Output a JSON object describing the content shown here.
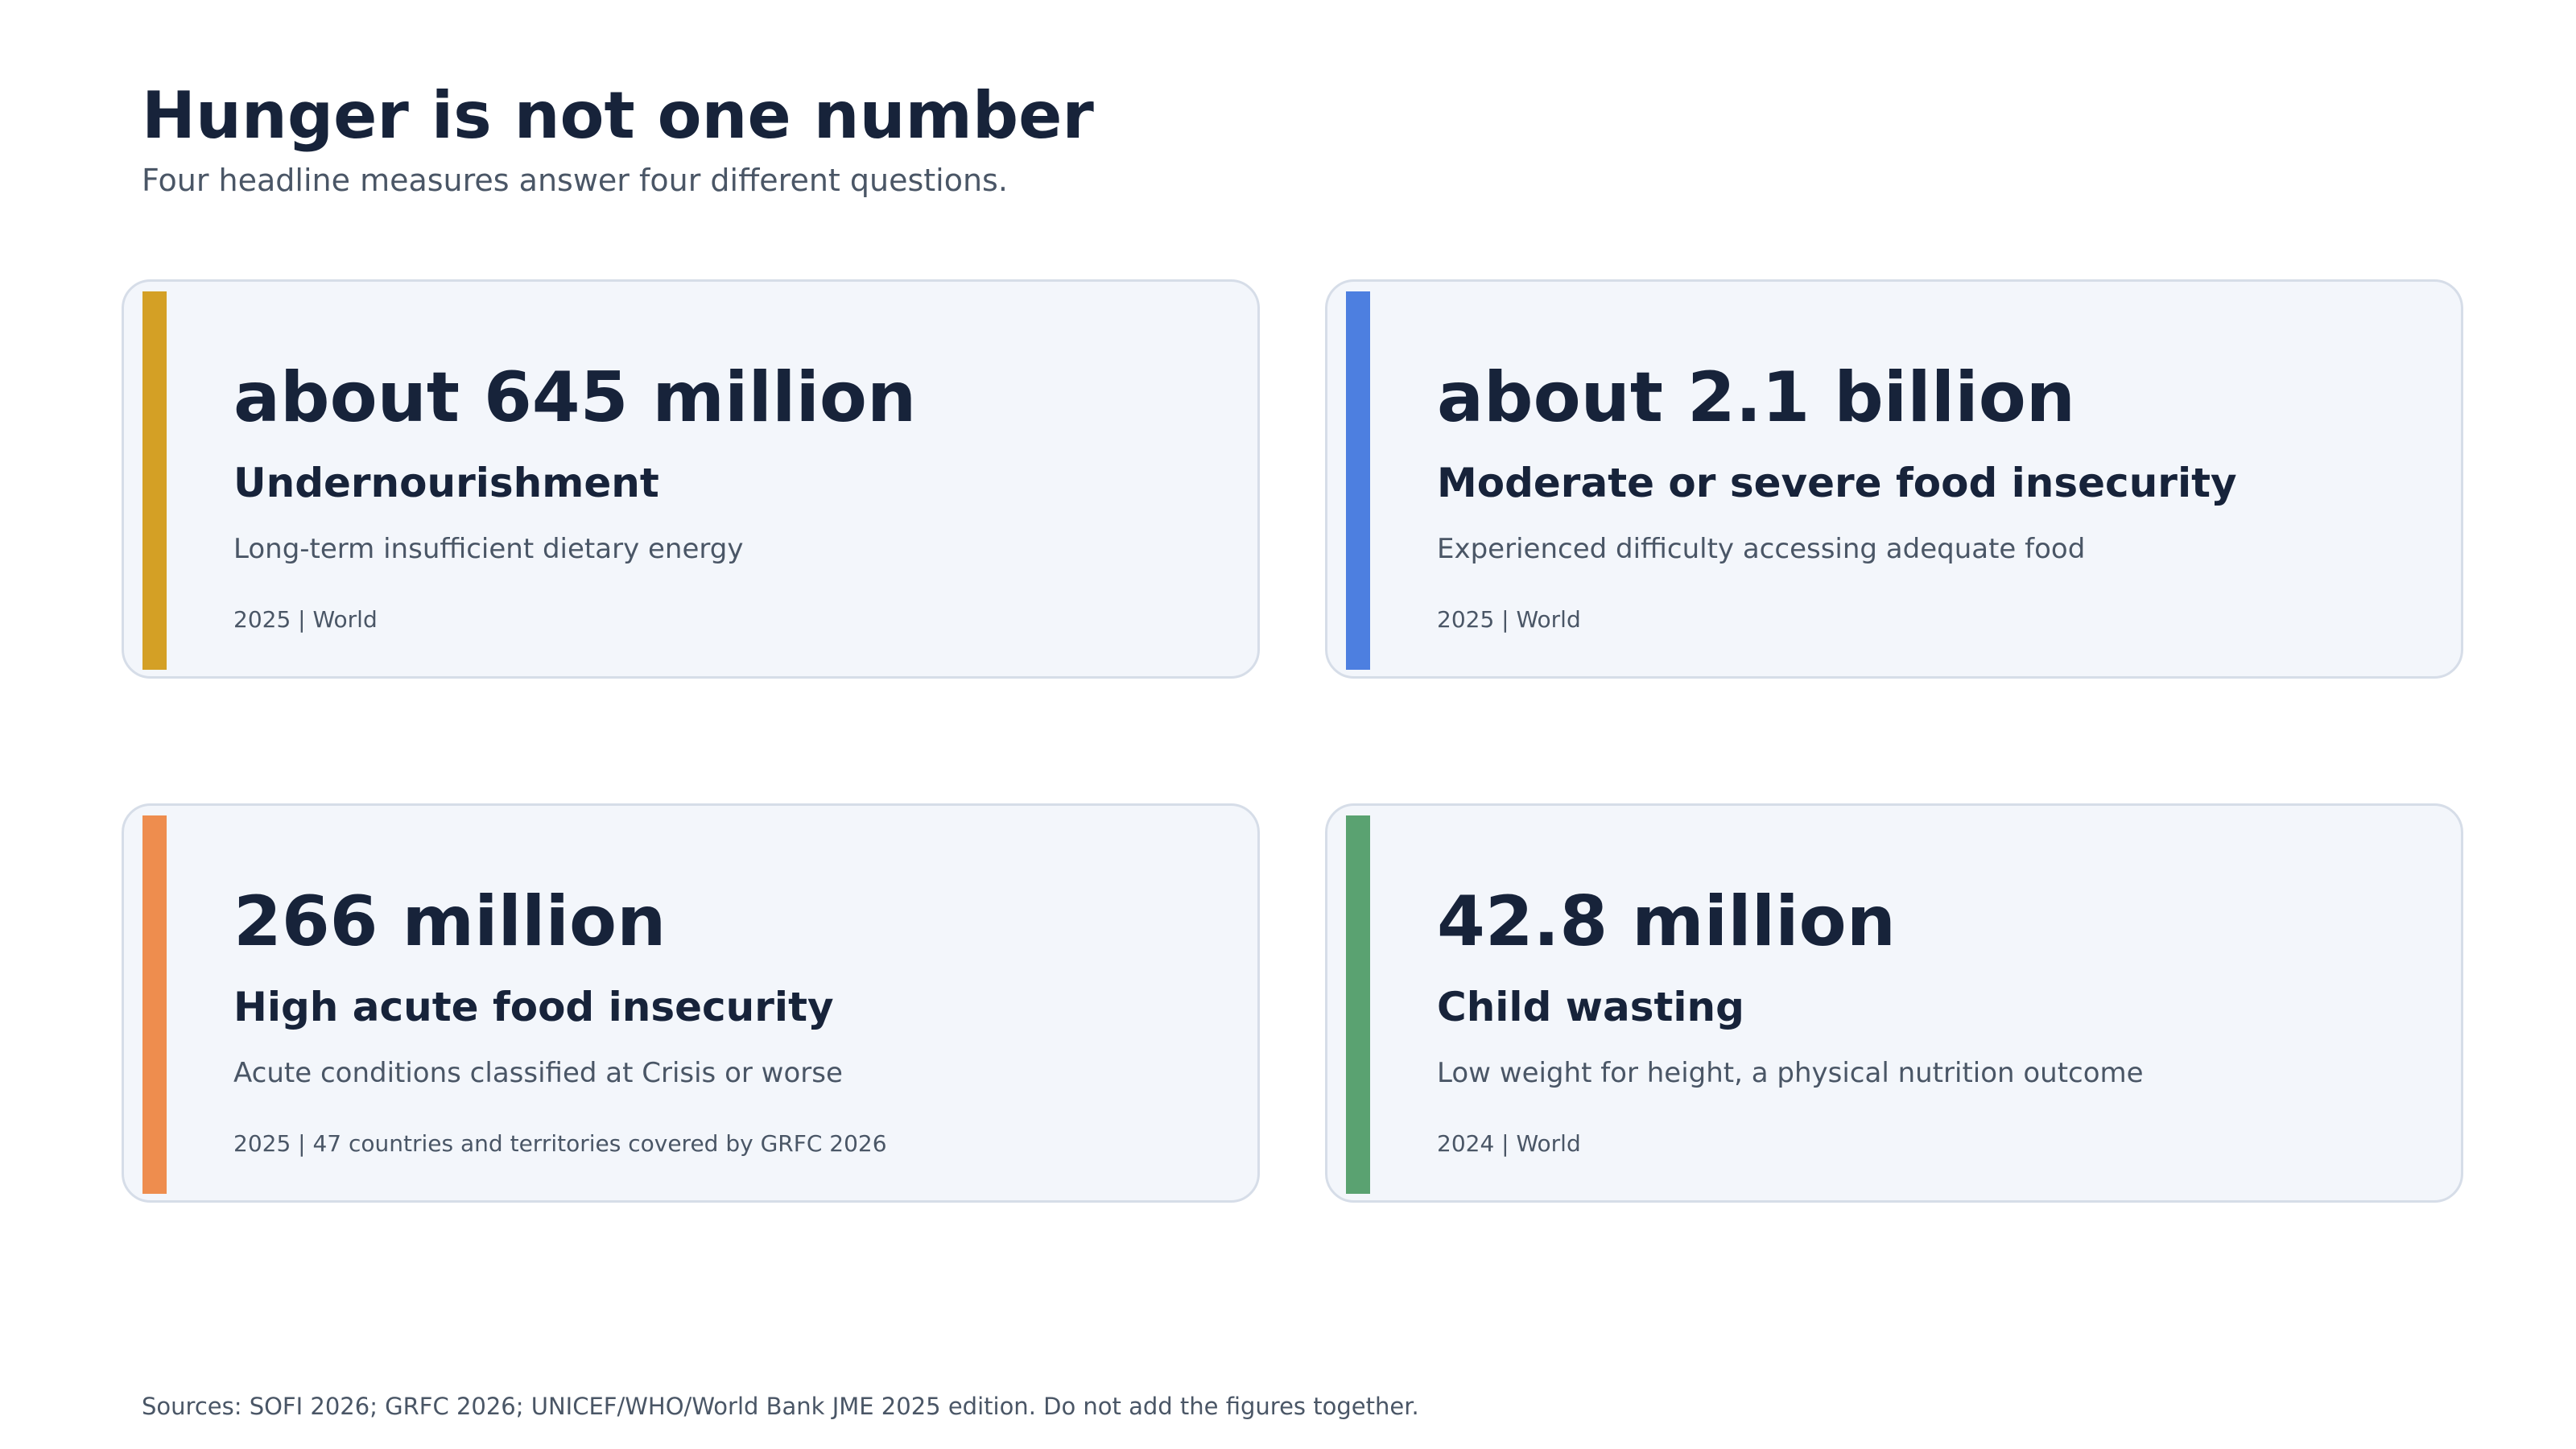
{
  "header": {
    "title": "Hunger is not one number",
    "subtitle": "Four headline measures answer four different questions."
  },
  "cards": [
    {
      "figure": "about 645 million",
      "measure": "Undernourishment",
      "description": "Long-term insufficient dietary energy",
      "meta": "2025 | World",
      "accent_color": "#d4a025"
    },
    {
      "figure": "about 2.1 billion",
      "measure": "Moderate or severe food insecurity",
      "description": "Experienced difficulty accessing adequate food",
      "meta": "2025 | World",
      "accent_color": "#4d7fe0"
    },
    {
      "figure": "266 million",
      "measure": "High acute food insecurity",
      "description": "Acute conditions classified at Crisis or worse",
      "meta": "2025 | 47 countries and territories covered by GRFC 2026",
      "accent_color": "#ee8d4e"
    },
    {
      "figure": "42.8 million",
      "measure": "Child wasting",
      "description": "Low weight for height, a physical nutrition outcome",
      "meta": "2024 | World",
      "accent_color": "#5aa271"
    }
  ],
  "footer": {
    "sources": "Sources: SOFI 2026; GRFC 2026; UNICEF/WHO/World Bank JME 2025 edition. Do not add the figures together."
  }
}
